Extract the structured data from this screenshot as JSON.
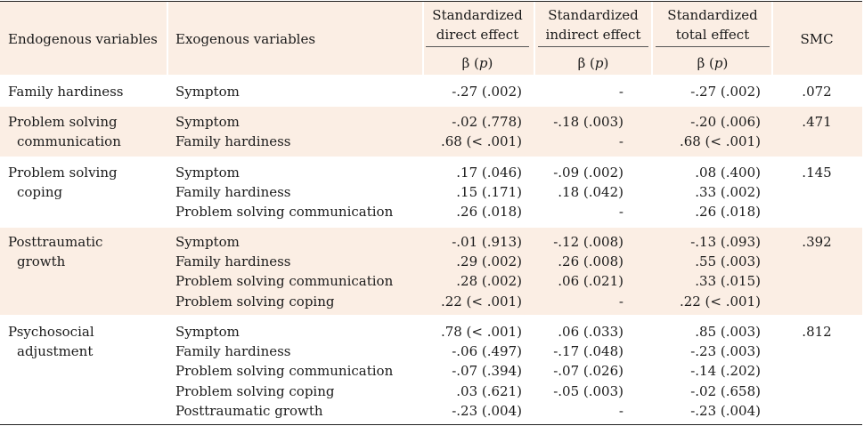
{
  "header": {
    "endogenous": "Endogenous variables",
    "exogenous": "Exogenous variables",
    "direct_line1": "Standardized",
    "direct_line2": "direct effect",
    "indirect_line1": "Standardized",
    "indirect_line2": "indirect effect",
    "total_line1": "Standardized",
    "total_line2": "total effect",
    "smc": "SMC",
    "beta_label": "β (p)"
  },
  "groups": [
    {
      "endogenous": [
        "Family hardiness"
      ],
      "smc": ".072",
      "rows": [
        {
          "exo": "Symptom",
          "direct": "-.27 (.002)",
          "indirect": "-",
          "total": "-.27 (.002)"
        }
      ]
    },
    {
      "endogenous": [
        "Problem solving",
        "communication"
      ],
      "smc": ".471",
      "rows": [
        {
          "exo": "Symptom",
          "direct": "-.02 (.778)",
          "indirect": "-.18 (.003)",
          "total": "-.20 (.006)"
        },
        {
          "exo": "Family hardiness",
          "direct": ".68 (< .001)",
          "indirect": "-",
          "total": ".68 (< .001)"
        }
      ]
    },
    {
      "endogenous": [
        "Problem solving",
        "coping"
      ],
      "smc": ".145",
      "rows": [
        {
          "exo": "Symptom",
          "direct": ".17 (.046)",
          "indirect": "-.09 (.002)",
          "total": ".08 (.400)"
        },
        {
          "exo": "Family hardiness",
          "direct": ".15 (.171)",
          "indirect": ".18 (.042)",
          "total": ".33 (.002)"
        },
        {
          "exo": "Problem solving communication",
          "direct": ".26 (.018)",
          "indirect": "-",
          "total": ".26 (.018)"
        }
      ]
    },
    {
      "endogenous": [
        "Posttraumatic",
        "growth"
      ],
      "smc": ".392",
      "rows": [
        {
          "exo": "Symptom",
          "direct": "-.01 (.913)",
          "indirect": "-.12 (.008)",
          "total": "-.13 (.093)"
        },
        {
          "exo": "Family hardiness",
          "direct": ".29 (.002)",
          "indirect": ".26 (.008)",
          "total": ".55 (.003)"
        },
        {
          "exo": "Problem solving communication",
          "direct": ".28 (.002)",
          "indirect": ".06 (.021)",
          "total": ".33 (.015)"
        },
        {
          "exo": "Problem solving coping",
          "direct": ".22 (< .001)",
          "indirect": "-",
          "total": ".22 (< .001)"
        }
      ]
    },
    {
      "endogenous": [
        "Psychosocial",
        "adjustment"
      ],
      "smc": ".812",
      "rows": [
        {
          "exo": "Symptom",
          "direct": ".78 (< .001)",
          "indirect": ".06 (.033)",
          "total": ".85 (.003)"
        },
        {
          "exo": "Family hardiness",
          "direct": "-.06 (.497)",
          "indirect": "-.17 (.048)",
          "total": "-.23 (.003)"
        },
        {
          "exo": "Problem solving communication",
          "direct": "-.07 (.394)",
          "indirect": "-.07 (.026)",
          "total": "-.14 (.202)"
        },
        {
          "exo": "Problem solving coping",
          "direct": ".03 (.621)",
          "indirect": "-.05 (.003)",
          "total": "-.02 (.658)"
        },
        {
          "exo": "Posttraumatic growth",
          "direct": "-.23 (.004)",
          "indirect": "-",
          "total": "-.23 (.004)"
        }
      ]
    }
  ]
}
